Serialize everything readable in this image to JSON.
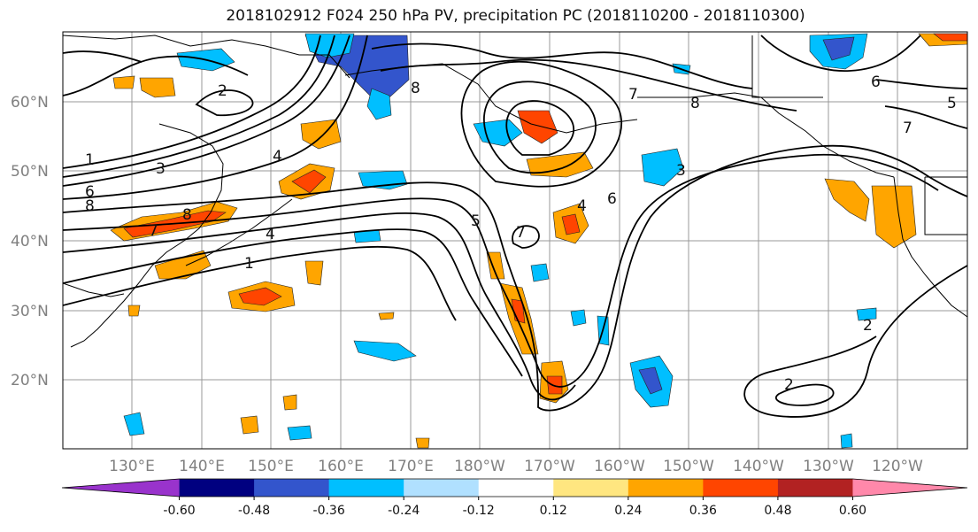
{
  "title": "2018102912 F024 250 hPa PV, precipitation PC (2018110200 - 2018110300)",
  "lat_labels": [
    "60°N",
    "50°N",
    "40°N",
    "30°N",
    "20°N"
  ],
  "lon_labels": [
    "130°E",
    "140°E",
    "150°E",
    "160°E",
    "170°E",
    "180°W",
    "170°W",
    "160°W",
    "150°W",
    "140°W",
    "130°W",
    "120°W"
  ],
  "colorbar": {
    "colors": [
      "#9933cc",
      "#000080",
      "#3355cc",
      "#00bfff",
      "#b0e0ff",
      "#ffffff",
      "#ffe680",
      "#ffa500",
      "#ff4500",
      "#b22222",
      "#ff88aa"
    ],
    "tick_labels": [
      "-0.60",
      "-0.48",
      "-0.36",
      "-0.24",
      "-0.12",
      "0.12",
      "0.24",
      "0.36",
      "0.48",
      "0.60"
    ]
  },
  "contour_labels": [
    "1",
    "2",
    "3",
    "4",
    "5",
    "6",
    "7",
    "8"
  ]
}
